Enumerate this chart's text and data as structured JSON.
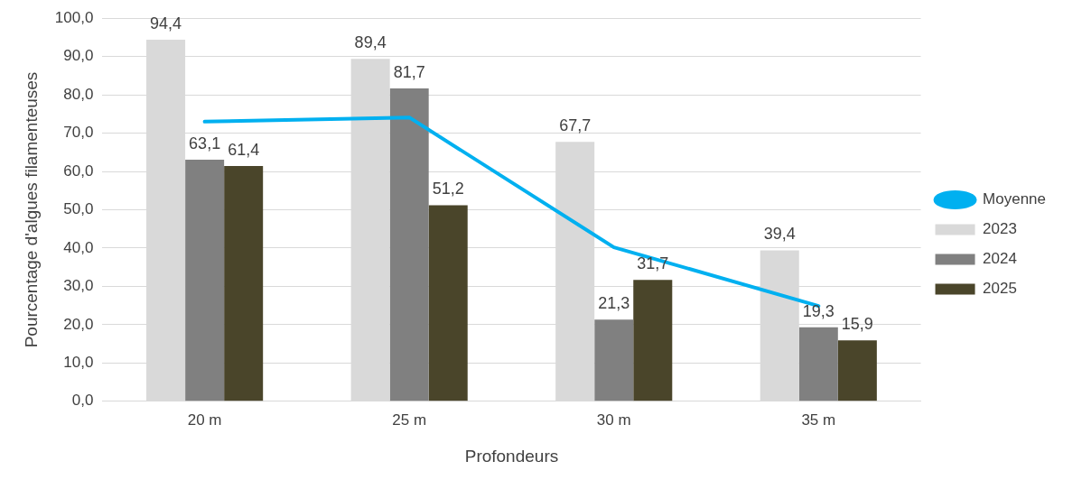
{
  "chart_data": {
    "type": "bar",
    "xlabel": "Profondeurs",
    "ylabel": "Pourcentage d'algues filamenteuses",
    "categories": [
      "20 m",
      "25 m",
      "30 m",
      "35 m"
    ],
    "series": [
      {
        "name": "2023",
        "color": "#d9d9d9",
        "values": [
          94.4,
          89.4,
          67.7,
          39.4
        ],
        "value_labels": [
          "94,4",
          "89,4",
          "67,7",
          "39,4"
        ]
      },
      {
        "name": "2024",
        "color": "#808080",
        "values": [
          63.1,
          81.7,
          21.3,
          19.3
        ],
        "value_labels": [
          "63,1",
          "81,7",
          "21,3",
          "19,3"
        ]
      },
      {
        "name": "2025",
        "color": "#4a452a",
        "values": [
          61.4,
          51.2,
          31.7,
          15.9
        ],
        "value_labels": [
          "61,4",
          "51,2",
          "31,7",
          "15,9"
        ]
      },
      {
        "name": "Moyenne",
        "type": "line",
        "color": "#00b0f0",
        "values": [
          73.0,
          74.1,
          40.2,
          24.9
        ]
      }
    ],
    "ylim": [
      0,
      100
    ],
    "yticks": [
      {
        "value": 0,
        "label": "0,0"
      },
      {
        "value": 10,
        "label": "10,0"
      },
      {
        "value": 20,
        "label": "20,0"
      },
      {
        "value": 30,
        "label": "30,0"
      },
      {
        "value": 40,
        "label": "40,0"
      },
      {
        "value": 50,
        "label": "50,0"
      },
      {
        "value": 60,
        "label": "60,0"
      },
      {
        "value": 70,
        "label": "70,0"
      },
      {
        "value": 80,
        "label": "80,0"
      },
      {
        "value": 90,
        "label": "90,0"
      },
      {
        "value": 100,
        "label": "100,0"
      }
    ],
    "grid": "y",
    "legend": "right",
    "marker": "none"
  }
}
